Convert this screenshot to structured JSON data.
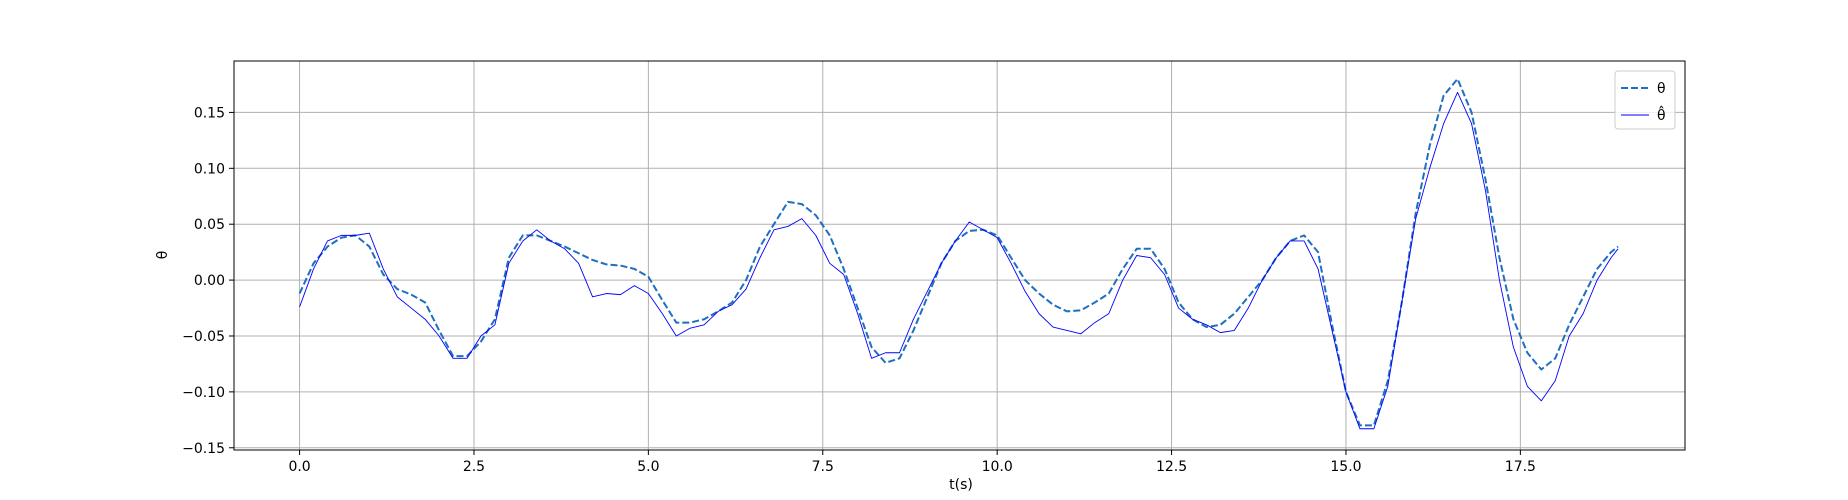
{
  "chart_data": {
    "type": "line",
    "xlabel": "t(s)",
    "ylabel": "θ",
    "grid": true,
    "legend": "upper right",
    "xlim": [
      -0.94,
      19.86
    ],
    "ylim": [
      -0.152,
      0.196
    ],
    "xticks": [
      {
        "value": 0,
        "label": "0.0"
      },
      2.5,
      {
        "value": 5,
        "label": "5.0"
      },
      7.5,
      {
        "value": 10,
        "label": "10.0"
      },
      12.5,
      {
        "value": 15,
        "label": "15.0"
      },
      17.5
    ],
    "yticks": [
      {
        "value": -0.15,
        "label": "−0.15"
      },
      {
        "value": -0.1,
        "label": "−0.10"
      },
      {
        "value": -0.05,
        "label": "−0.05"
      },
      {
        "value": 0,
        "label": "0.00"
      },
      0.05,
      {
        "value": 0.1,
        "label": "0.10"
      },
      0.15
    ],
    "x": [
      0,
      0.2,
      0.4,
      0.6,
      0.8,
      1.0,
      1.2,
      1.4,
      1.6,
      1.8,
      2.0,
      2.2,
      2.4,
      2.6,
      2.8,
      3.0,
      3.2,
      3.4,
      3.6,
      3.8,
      4.0,
      4.2,
      4.4,
      4.6,
      4.8,
      5.0,
      5.2,
      5.4,
      5.6,
      5.8,
      6.0,
      6.2,
      6.4,
      6.6,
      6.8,
      7.0,
      7.2,
      7.4,
      7.6,
      7.8,
      8.0,
      8.2,
      8.4,
      8.6,
      8.8,
      9.0,
      9.2,
      9.4,
      9.6,
      9.8,
      10.0,
      10.2,
      10.4,
      10.6,
      10.8,
      11.0,
      11.2,
      11.4,
      11.6,
      11.8,
      12.0,
      12.2,
      12.4,
      12.6,
      12.8,
      13.0,
      13.2,
      13.4,
      13.6,
      13.8,
      14.0,
      14.2,
      14.4,
      14.6,
      14.8,
      15.0,
      15.2,
      15.4,
      15.6,
      15.8,
      16.0,
      16.2,
      16.4,
      16.6,
      16.8,
      17.0,
      17.2,
      17.4,
      17.6,
      17.8,
      18.0,
      18.2,
      18.4,
      18.6,
      18.8,
      18.9
    ],
    "series": [
      {
        "name": "θ",
        "color": "#1f6fbf",
        "dashed": true,
        "width": 2,
        "values": [
          -0.012,
          0.015,
          0.03,
          0.038,
          0.04,
          0.03,
          0.005,
          -0.008,
          -0.013,
          -0.02,
          -0.045,
          -0.068,
          -0.068,
          -0.055,
          -0.035,
          0.02,
          0.04,
          0.04,
          0.035,
          0.03,
          0.024,
          0.018,
          0.014,
          0.013,
          0.01,
          0.003,
          -0.018,
          -0.038,
          -0.038,
          -0.035,
          -0.028,
          -0.02,
          0.0,
          0.03,
          0.05,
          0.07,
          0.068,
          0.058,
          0.04,
          0.01,
          -0.025,
          -0.06,
          -0.074,
          -0.07,
          -0.045,
          -0.015,
          0.015,
          0.035,
          0.044,
          0.045,
          0.04,
          0.02,
          0.0,
          -0.012,
          -0.022,
          -0.028,
          -0.027,
          -0.02,
          -0.012,
          0.01,
          0.028,
          0.028,
          0.01,
          -0.02,
          -0.035,
          -0.042,
          -0.04,
          -0.03,
          -0.015,
          0.0,
          0.02,
          0.035,
          0.04,
          0.025,
          -0.04,
          -0.1,
          -0.13,
          -0.13,
          -0.09,
          -0.02,
          0.06,
          0.12,
          0.165,
          0.18,
          0.15,
          0.09,
          0.02,
          -0.035,
          -0.065,
          -0.08,
          -0.07,
          -0.04,
          -0.015,
          0.01,
          0.025,
          0.03
        ]
      },
      {
        "name": "θ̂",
        "color": "#0000ff",
        "dashed": false,
        "width": 0.9,
        "values": [
          -0.024,
          0.01,
          0.035,
          0.04,
          0.04,
          0.042,
          0.01,
          -0.015,
          -0.025,
          -0.035,
          -0.05,
          -0.07,
          -0.07,
          -0.05,
          -0.04,
          0.015,
          0.035,
          0.045,
          0.035,
          0.028,
          0.015,
          -0.015,
          -0.012,
          -0.013,
          -0.005,
          -0.012,
          -0.03,
          -0.05,
          -0.043,
          -0.04,
          -0.028,
          -0.022,
          -0.008,
          0.02,
          0.045,
          0.048,
          0.055,
          0.04,
          0.015,
          0.005,
          -0.03,
          -0.07,
          -0.065,
          -0.065,
          -0.035,
          -0.01,
          0.015,
          0.035,
          0.052,
          0.045,
          0.038,
          0.015,
          -0.01,
          -0.03,
          -0.042,
          -0.045,
          -0.048,
          -0.038,
          -0.03,
          0.0,
          0.022,
          0.02,
          0.005,
          -0.025,
          -0.035,
          -0.04,
          -0.047,
          -0.045,
          -0.025,
          0.0,
          0.02,
          0.035,
          0.035,
          0.01,
          -0.045,
          -0.1,
          -0.133,
          -0.133,
          -0.095,
          -0.02,
          0.055,
          0.1,
          0.14,
          0.168,
          0.14,
          0.08,
          0.0,
          -0.06,
          -0.095,
          -0.108,
          -0.09,
          -0.05,
          -0.03,
          0.0,
          0.02,
          0.028
        ]
      }
    ]
  }
}
